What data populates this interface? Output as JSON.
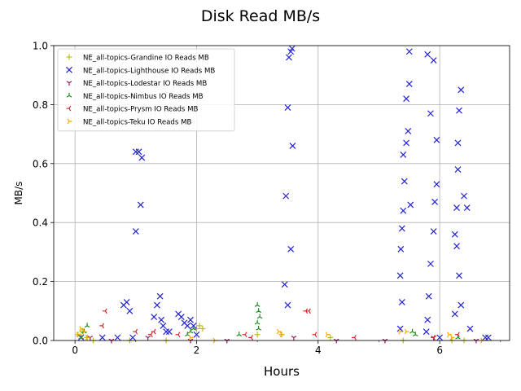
{
  "chart_data": {
    "type": "scatter",
    "title": "Disk Read MB/s",
    "xlabel": "Hours",
    "ylabel": "MB/s",
    "xlim": [
      -0.35,
      7.15
    ],
    "ylim": [
      0,
      1.0
    ],
    "xticks": [
      0,
      2,
      4,
      6
    ],
    "xtick_labels": [
      "0",
      "2",
      "4",
      "6"
    ],
    "yticks": [
      0.0,
      0.2,
      0.4,
      0.6,
      0.8,
      1.0
    ],
    "ytick_labels": [
      "0.0",
      "0.2",
      "0.4",
      "0.6",
      "0.8",
      "1.0"
    ],
    "grid": true,
    "legend_position": "top-left",
    "series": [
      {
        "name": "NE_all-topics-Grandine IO Reads MB",
        "color": "#bcbd22",
        "marker": "plus",
        "x": [
          0.05,
          0.12,
          0.2,
          0.3,
          0.9,
          1.5,
          2.0,
          2.05,
          2.1,
          3.0,
          3.4,
          4.2,
          5.4,
          6.2,
          6.4
        ],
        "y": [
          0.02,
          0.03,
          0.01,
          0.0,
          0.0,
          0.0,
          0.04,
          0.05,
          0.04,
          0.02,
          0.02,
          0.01,
          0.0,
          0.0,
          0.0
        ]
      },
      {
        "name": "NE_all-topics-Lighthouse IO Reads MB",
        "color": "#2222dd",
        "marker": "x",
        "x": [
          0.1,
          0.45,
          0.7,
          0.8,
          0.85,
          0.9,
          0.95,
          1.0,
          1.0,
          1.05,
          1.1,
          1.08,
          1.3,
          1.35,
          1.4,
          1.42,
          1.45,
          1.5,
          1.55,
          1.7,
          1.75,
          1.8,
          1.85,
          1.9,
          1.95,
          2.0,
          3.45,
          3.47,
          3.5,
          3.52,
          3.55,
          3.57,
          3.58,
          3.55,
          3.5,
          5.35,
          5.38,
          5.4,
          5.45,
          5.5,
          5.8,
          5.85,
          5.9,
          5.95,
          6.0,
          6.25,
          6.28,
          6.3,
          6.32,
          6.35,
          6.4,
          6.45,
          6.5,
          6.75,
          6.8
        ],
        "y": [
          0.01,
          0.01,
          0.01,
          0.12,
          0.13,
          0.1,
          0.01,
          0.37,
          0.64,
          0.64,
          0.62,
          0.46,
          0.08,
          0.12,
          0.15,
          0.07,
          0.05,
          0.03,
          0.03,
          0.09,
          0.08,
          0.06,
          0.05,
          0.07,
          0.05,
          0.02,
          0.19,
          0.49,
          0.79,
          0.96,
          0.98,
          0.99,
          0.66,
          0.31,
          0.12,
          0.04,
          0.13,
          0.63,
          0.82,
          0.98,
          0.97,
          0.77,
          0.95,
          0.53,
          0.01,
          0.09,
          0.32,
          0.58,
          0.78,
          0.85,
          0.49,
          0.45,
          0.04,
          0.01,
          0.01
        ],
        "x2": [
          5.35,
          5.36,
          5.38,
          5.4,
          5.42,
          5.45,
          5.48,
          5.5,
          5.52,
          5.78,
          5.8,
          5.82,
          5.85,
          5.9,
          5.92,
          5.95,
          6.25,
          6.28,
          6.3,
          6.32,
          6.35
        ],
        "y2": [
          0.22,
          0.31,
          0.38,
          0.44,
          0.54,
          0.67,
          0.71,
          0.87,
          0.46,
          0.03,
          0.07,
          0.15,
          0.26,
          0.37,
          0.47,
          0.68,
          0.36,
          0.45,
          0.67,
          0.22,
          0.12
        ]
      },
      {
        "name": "NE_all-topics-Lodestar IO Reads MB",
        "color": "#8b1a5a",
        "marker": "tri_down",
        "x": [
          0.25,
          0.6,
          1.2,
          1.9,
          2.5,
          3.6,
          4.3,
          5.1,
          5.9,
          6.6
        ],
        "y": [
          0.01,
          0.0,
          0.01,
          0.0,
          0.0,
          0.01,
          0.0,
          0.0,
          0.01,
          0.0
        ]
      },
      {
        "name": "NE_all-topics-Nimbus IO Reads MB",
        "color": "#1a8c1a",
        "marker": "tri_up",
        "x": [
          0.1,
          0.15,
          0.2,
          1.85,
          1.9,
          1.95,
          2.7,
          3.0,
          3.02,
          3.04,
          3.0,
          3.02,
          5.55,
          5.6,
          6.3
        ],
        "y": [
          0.01,
          0.03,
          0.05,
          0.02,
          0.03,
          0.04,
          0.02,
          0.12,
          0.1,
          0.08,
          0.06,
          0.04,
          0.03,
          0.02,
          0.01
        ]
      },
      {
        "name": "NE_all-topics-Prysm IO Reads MB",
        "color": "#d62728",
        "marker": "tri_left",
        "x": [
          0.45,
          0.5,
          1.0,
          1.25,
          1.3,
          1.7,
          2.8,
          2.9,
          3.8,
          3.85,
          3.95,
          4.6,
          5.9,
          6.3
        ],
        "y": [
          0.05,
          0.1,
          0.03,
          0.02,
          0.03,
          0.02,
          0.02,
          0.01,
          0.1,
          0.1,
          0.02,
          0.01,
          0.01,
          0.02
        ]
      },
      {
        "name": "NE_all-topics-Teku IO Reads MB",
        "color": "#ffa500",
        "marker": "tri_right",
        "x": [
          0.05,
          0.1,
          0.15,
          0.2,
          1.9,
          2.3,
          3.35,
          3.4,
          4.15,
          5.35,
          5.45,
          6.15,
          6.2,
          6.7
        ],
        "y": [
          0.02,
          0.04,
          0.03,
          0.01,
          0.01,
          0.0,
          0.03,
          0.02,
          0.02,
          0.03,
          0.03,
          0.02,
          0.01,
          0.0
        ]
      }
    ]
  }
}
